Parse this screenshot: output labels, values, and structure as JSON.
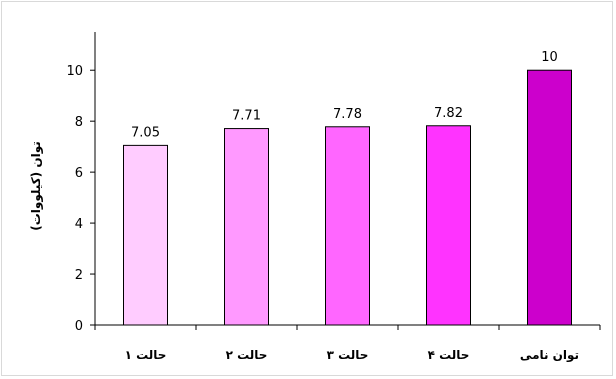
{
  "chart_data": {
    "type": "bar",
    "title": "",
    "xlabel": "",
    "ylabel": "توان (کیلووات)",
    "ylim": [
      0,
      11.5
    ],
    "yticks": [
      0,
      2,
      4,
      6,
      8,
      10
    ],
    "grid": false,
    "legend": "none",
    "categories": [
      "حالت ۱",
      "حالت ۲",
      "حالت ۳",
      "حالت ۴",
      "توان نامی"
    ],
    "values": [
      7.05,
      7.71,
      7.78,
      7.82,
      10
    ],
    "data_labels": [
      "7.05",
      "7.71",
      "7.78",
      "7.82",
      "10"
    ],
    "bar_colors": [
      "#ffccff",
      "#ff99ff",
      "#ff66ff",
      "#ff33ff",
      "#cc00cc"
    ]
  }
}
